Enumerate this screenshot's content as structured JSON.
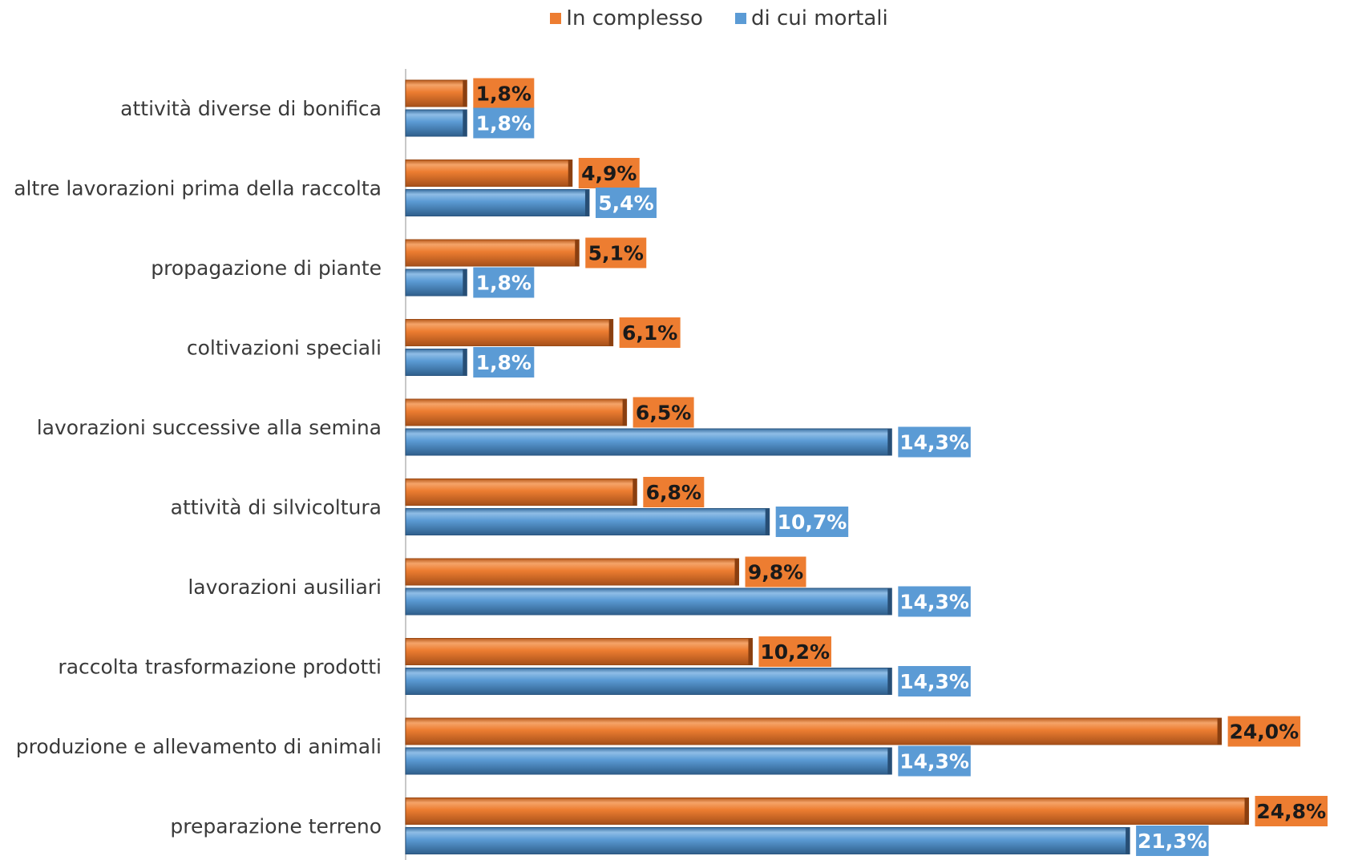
{
  "colors": {
    "orange": "#ED7D31",
    "blue": "#5B9BD5",
    "axis": "#c8c8c8",
    "category_text": "#3a3a3a",
    "orange_label_text": "#1a1a1a",
    "blue_label_text": "#ffffff"
  },
  "legend": {
    "items": [
      {
        "label": "In complesso",
        "color": "#ED7D31"
      },
      {
        "label": "di cui mortali",
        "color": "#5B9BD5"
      }
    ],
    "placement": "top"
  },
  "chart_data": {
    "type": "bar",
    "orientation": "horizontal",
    "title": "",
    "xlabel": "",
    "ylabel": "",
    "xlim": [
      0,
      26
    ],
    "grid": false,
    "legend_position": "top",
    "categories": [
      "attività diverse di bonifica",
      "altre lavorazioni prima della raccolta",
      "propagazione di piante",
      "coltivazioni speciali",
      "lavorazioni successive alla semina",
      "attività di silvicoltura",
      "lavorazioni ausiliari",
      "raccolta trasformazione prodotti",
      "produzione e allevamento di animali",
      "preparazione terreno"
    ],
    "series": [
      {
        "name": "In complesso",
        "color": "#ED7D31",
        "values": [
          1.8,
          4.9,
          5.1,
          6.1,
          6.5,
          6.8,
          9.8,
          10.2,
          24.0,
          24.8
        ],
        "labels": [
          "1,8%",
          "4,9%",
          "5,1%",
          "6,1%",
          "6,5%",
          "6,8%",
          "9,8%",
          "10,2%",
          "24,0%",
          "24,8%"
        ]
      },
      {
        "name": "di cui mortali",
        "color": "#5B9BD5",
        "values": [
          1.8,
          5.4,
          1.8,
          1.8,
          14.3,
          10.7,
          14.3,
          14.3,
          14.3,
          21.3
        ],
        "labels": [
          "1,8%",
          "5,4%",
          "1,8%",
          "1,8%",
          "14,3%",
          "10,7%",
          "14,3%",
          "14,3%",
          "14,3%",
          "21,3%"
        ]
      }
    ]
  }
}
